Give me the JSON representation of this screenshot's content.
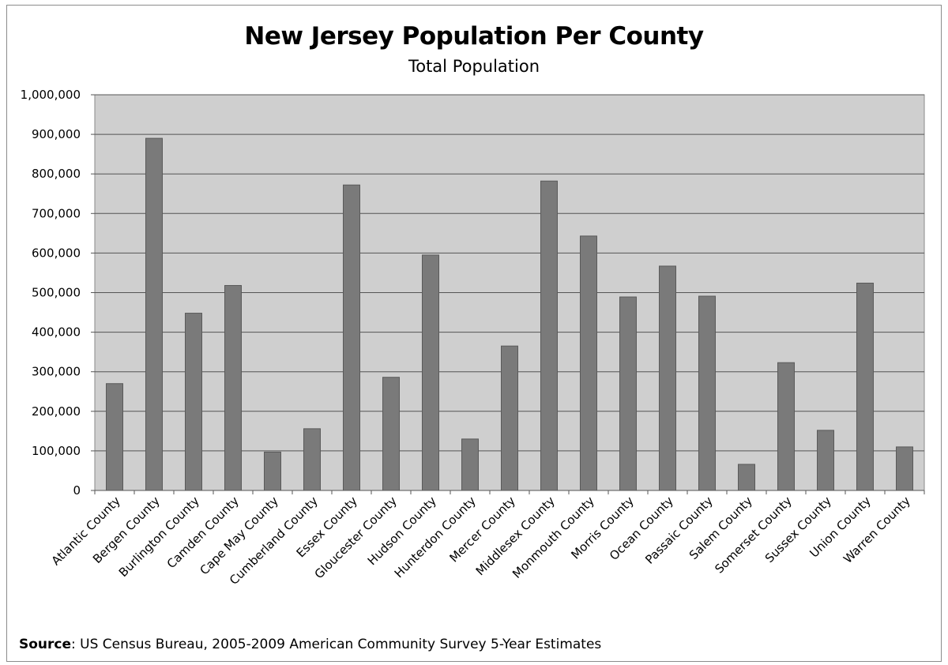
{
  "chart_data": {
    "type": "bar",
    "title": "New Jersey Population Per County",
    "subtitle": "Total Population",
    "xlabel": "",
    "ylabel": "",
    "ylim": [
      0,
      1000000
    ],
    "yticks": [
      0,
      100000,
      200000,
      300000,
      400000,
      500000,
      600000,
      700000,
      800000,
      900000,
      1000000
    ],
    "ytick_labels": [
      "0",
      "100,000",
      "200,000",
      "300,000",
      "400,000",
      "500,000",
      "600,000",
      "700,000",
      "800,000",
      "900,000",
      "1,000,000"
    ],
    "grid": true,
    "legend": "none",
    "bar_color": "#7a7a7a",
    "plot_background": "#cfcfcf",
    "categories": [
      "Atlantic County",
      "Bergen County",
      "Burlington County",
      "Camden County",
      "Cape May County",
      "Cumberland County",
      "Essex County",
      "Gloucester County",
      "Hudson County",
      "Hunterdon County",
      "Mercer County",
      "Middlesex County",
      "Monmouth County",
      "Morris County",
      "Ocean County",
      "Passaic County",
      "Salem County",
      "Somerset County",
      "Sussex County",
      "Union County",
      "Warren County"
    ],
    "values": [
      270000,
      890000,
      448000,
      518000,
      97000,
      156000,
      772000,
      286000,
      595000,
      130000,
      365000,
      782000,
      643000,
      489000,
      567000,
      491000,
      66000,
      323000,
      152000,
      524000,
      110000
    ]
  },
  "source": {
    "label": "Source",
    "text": ": US Census Bureau, 2005-2009 American Community Survey 5-Year Estimates"
  }
}
